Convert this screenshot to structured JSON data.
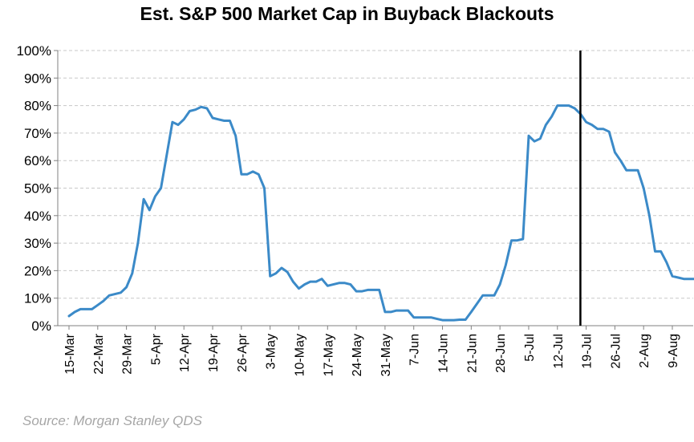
{
  "chart_data": {
    "type": "line",
    "title": "Est. S&P 500 Market Cap in Buyback Blackouts",
    "source": "Source: Morgan Stanley QDS",
    "xlabel": "",
    "ylabel": "",
    "ylim": [
      0,
      100
    ],
    "yticks": [
      "0%",
      "10%",
      "20%",
      "30%",
      "40%",
      "50%",
      "60%",
      "70%",
      "80%",
      "90%",
      "100%"
    ],
    "xticks": [
      "15-Mar",
      "22-Mar",
      "29-Mar",
      "5-Apr",
      "12-Apr",
      "19-Apr",
      "26-Apr",
      "3-May",
      "10-May",
      "17-May",
      "24-May",
      "31-May",
      "7-Jun",
      "14-Jun",
      "21-Jun",
      "28-Jun",
      "5-Jul",
      "12-Jul",
      "19-Jul",
      "26-Jul",
      "2-Aug",
      "9-Aug"
    ],
    "grid": true,
    "line_color": "#3b8ac8",
    "marker_line": {
      "x": "16-Jul",
      "color": "#000000"
    },
    "series": [
      {
        "x": [
          "15-Mar",
          "16-Mar",
          "17-Mar",
          "18-Mar",
          "19-Mar",
          "22-Mar",
          "23-Mar",
          "24-Mar",
          "25-Mar",
          "26-Mar",
          "29-Mar",
          "30-Mar",
          "31-Mar",
          "1-Apr",
          "2-Apr",
          "5-Apr",
          "6-Apr",
          "7-Apr",
          "8-Apr",
          "9-Apr",
          "12-Apr",
          "13-Apr",
          "14-Apr",
          "15-Apr",
          "16-Apr",
          "19-Apr",
          "20-Apr",
          "21-Apr",
          "22-Apr",
          "23-Apr",
          "26-Apr",
          "27-Apr",
          "28-Apr",
          "29-Apr",
          "30-Apr",
          "3-May",
          "4-May",
          "5-May",
          "6-May",
          "7-May",
          "10-May",
          "11-May",
          "12-May",
          "13-May",
          "14-May",
          "17-May",
          "18-May",
          "19-May",
          "20-May",
          "21-May",
          "24-May",
          "25-May",
          "26-May",
          "27-May",
          "28-May",
          "31-May",
          "1-Jun",
          "2-Jun",
          "3-Jun",
          "4-Jun",
          "7-Jun",
          "8-Jun",
          "9-Jun",
          "10-Jun",
          "11-Jun",
          "14-Jun",
          "15-Jun",
          "16-Jun",
          "17-Jun",
          "18-Jun",
          "21-Jun",
          "22-Jun",
          "23-Jun",
          "24-Jun",
          "25-Jun",
          "28-Jun",
          "29-Jun",
          "30-Jun",
          "1-Jul",
          "2-Jul",
          "5-Jul",
          "6-Jul",
          "7-Jul",
          "8-Jul",
          "9-Jul",
          "12-Jul",
          "13-Jul",
          "14-Jul",
          "15-Jul",
          "16-Jul",
          "19-Jul",
          "20-Jul",
          "21-Jul",
          "22-Jul",
          "23-Jul",
          "26-Jul",
          "27-Jul",
          "28-Jul",
          "29-Jul",
          "30-Jul",
          "2-Aug",
          "3-Aug",
          "4-Aug",
          "5-Aug",
          "6-Aug",
          "9-Aug",
          "10-Aug",
          "11-Aug",
          "12-Aug",
          "13-Aug"
        ],
        "values": [
          3.5,
          5,
          6,
          6,
          6,
          7.5,
          9,
          11,
          11.5,
          12,
          14,
          19,
          30,
          46,
          42,
          47,
          50,
          62,
          74,
          73,
          75,
          78,
          78.5,
          79.5,
          79,
          75.5,
          75,
          74.5,
          74.5,
          69,
          55,
          55,
          56,
          55,
          50,
          18,
          19,
          21,
          19.5,
          16,
          13.5,
          15,
          16,
          16,
          17,
          14.5,
          15,
          15.5,
          15.5,
          15,
          12.5,
          12.5,
          13,
          13,
          13,
          5,
          5,
          5.5,
          5.5,
          5.5,
          3,
          3,
          3,
          3,
          2.5,
          2,
          2,
          2,
          2.2,
          2.2,
          5,
          8,
          11,
          11,
          11,
          15,
          22,
          31,
          31,
          31.5,
          69,
          67,
          68,
          73,
          76,
          80,
          80,
          80,
          79,
          77,
          74,
          73,
          71.5,
          71.5,
          70.5,
          63,
          60,
          56.5,
          56.5,
          56.5,
          50,
          40,
          27,
          27,
          23,
          18,
          17.5,
          17,
          17,
          17
        ]
      }
    ]
  }
}
